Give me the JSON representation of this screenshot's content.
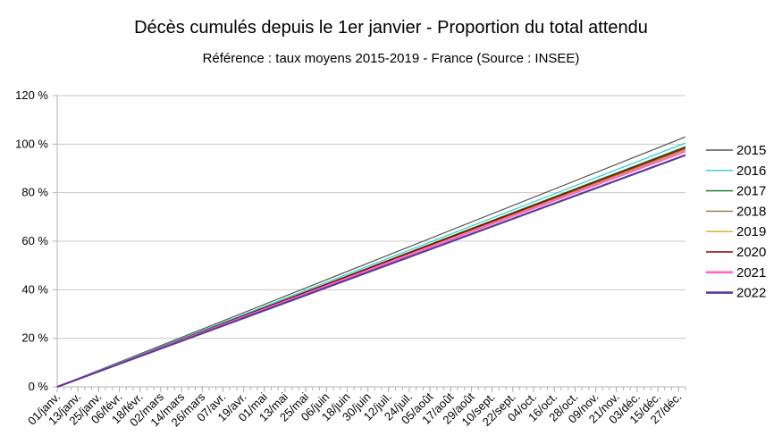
{
  "chart_data": {
    "type": "line",
    "title": "Décès cumulés depuis le 1er janvier - Proportion du total attendu",
    "subtitle": "Référence : taux moyens 2015-2019 - France  (Source : INSEE)",
    "xlabel": "",
    "ylabel": "",
    "x_tick_labels": [
      "01/janv.",
      "13/janv.",
      "25/janv.",
      "06/févr.",
      "18/févr.",
      "02/mars",
      "14/mars",
      "26/mars",
      "07/avr.",
      "19/avr.",
      "01/mai",
      "13/mai",
      "25/mai",
      "06/juin",
      "18/juin",
      "30/juin",
      "12/juil.",
      "24/juil.",
      "05/août",
      "17/août",
      "29/août",
      "10/sept.",
      "22/sept.",
      "04/oct.",
      "16/oct.",
      "28/oct.",
      "09/nov.",
      "21/nov.",
      "03/déc.",
      "15/déc.",
      "27/déc."
    ],
    "y_tick_labels": [
      "0 %",
      "20 %",
      "40 %",
      "60 %",
      "80 %",
      "100 %",
      "120 %"
    ],
    "ylim": [
      0,
      120
    ],
    "grid": "horizontal",
    "legend_position": "right",
    "x": [
      "01/janv.",
      "31/déc."
    ],
    "series": [
      {
        "name": "2015",
        "color": "#555555",
        "values": [
          0,
          103
        ]
      },
      {
        "name": "2016",
        "color": "#33cccc",
        "values": [
          0,
          100.5
        ]
      },
      {
        "name": "2017",
        "color": "#127622",
        "values": [
          0,
          99
        ]
      },
      {
        "name": "2018",
        "color": "#a0743a",
        "values": [
          0,
          98
        ]
      },
      {
        "name": "2019",
        "color": "#e6a220",
        "values": [
          0,
          97.5
        ]
      },
      {
        "name": "2020",
        "color": "#8b0000",
        "values": [
          0,
          98.5
        ]
      },
      {
        "name": "2021",
        "color": "#ff66cc",
        "values": [
          0,
          97
        ]
      },
      {
        "name": "2022",
        "color": "#5c3a99",
        "values": [
          0,
          95.5
        ]
      }
    ]
  }
}
